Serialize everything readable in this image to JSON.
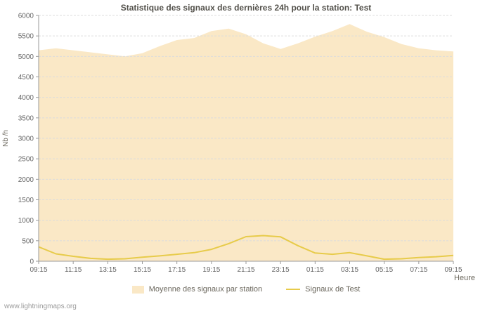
{
  "watermark": "www.lightningmaps.org",
  "chart_data": {
    "type": "area",
    "title": "Statistique des signaux des dernières 24h pour la station: Test",
    "xlabel": "Heure",
    "ylabel": "Nb /h",
    "ylim": [
      0,
      6000
    ],
    "ytick_step": 500,
    "grid": true,
    "legend_position": "bottom",
    "x": [
      "09:15",
      "10:15",
      "11:15",
      "12:15",
      "13:15",
      "14:15",
      "15:15",
      "16:15",
      "17:15",
      "18:15",
      "19:15",
      "20:15",
      "21:15",
      "22:15",
      "23:15",
      "00:15",
      "01:15",
      "02:15",
      "03:15",
      "04:15",
      "05:15",
      "06:15",
      "07:15",
      "08:15",
      "09:15"
    ],
    "xtick_labels": [
      "09:15",
      "11:15",
      "13:15",
      "15:15",
      "17:15",
      "19:15",
      "21:15",
      "23:15",
      "01:15",
      "03:15",
      "05:15",
      "07:15",
      "09:15"
    ],
    "xtick_idx": [
      0,
      2,
      4,
      6,
      8,
      10,
      12,
      14,
      16,
      18,
      20,
      22,
      24
    ],
    "series": [
      {
        "name": "Moyenne des signaux par station",
        "type": "area",
        "color": "#fae8c6",
        "values": [
          5150,
          5200,
          5150,
          5100,
          5050,
          5000,
          5080,
          5250,
          5400,
          5450,
          5620,
          5680,
          5540,
          5320,
          5180,
          5320,
          5480,
          5620,
          5790,
          5600,
          5470,
          5300,
          5200,
          5150,
          5120
        ]
      },
      {
        "name": "Signaux de Test",
        "type": "line",
        "color": "#e7cb4a",
        "values": [
          350,
          180,
          120,
          70,
          50,
          60,
          100,
          130,
          170,
          210,
          290,
          430,
          600,
          625,
          595,
          380,
          200,
          170,
          210,
          130,
          50,
          60,
          90,
          110,
          140
        ]
      }
    ]
  },
  "colors": {
    "area_fill": "#fae8c6",
    "line": "#e7cb4a",
    "grid": "#dcdcdc",
    "axis": "#999999",
    "tick_text": "#666666",
    "title_text": "#53514b"
  }
}
